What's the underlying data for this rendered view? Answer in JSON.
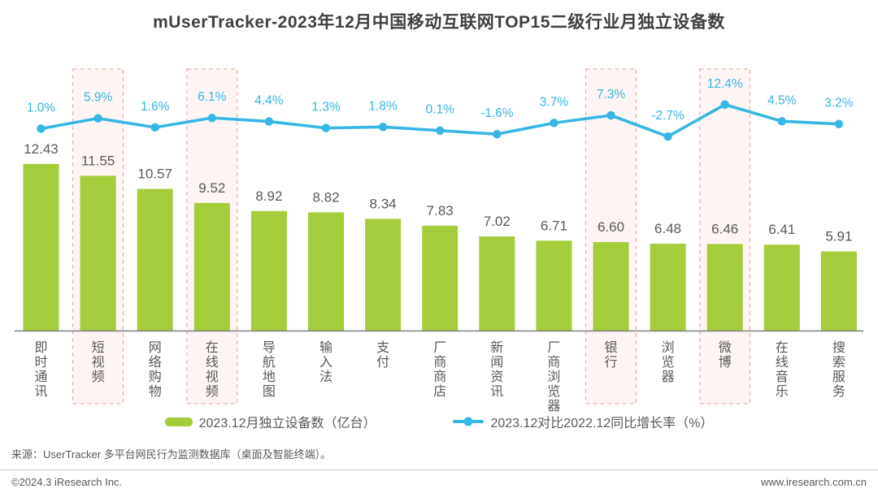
{
  "title": "mUserTracker-2023年12月中国移动互联网TOP15二级行业月独立设备数",
  "colors": {
    "bar_green": "#a5cc3a",
    "line_blue": "#36b6e3",
    "highlight_fill": "#fdf5f4",
    "highlight_border": "#e0a49f",
    "value_label": "#595959",
    "category_label": "#595959",
    "axis": "#7f7f7f",
    "title_text": "#404040",
    "footer_text": "#595959"
  },
  "chart_data": {
    "type": "bar",
    "categories": [
      "即时通讯",
      "短视频",
      "网络购物",
      "在线视频",
      "导航地图",
      "输入法",
      "支付",
      "厂商商店",
      "新闻资讯",
      "厂商浏览器",
      "银行",
      "浏览器",
      "微博",
      "在线音乐",
      "搜索服务"
    ],
    "series": [
      {
        "name": "2023.12月独立设备数（亿台）",
        "type": "bar",
        "values": [
          12.43,
          11.55,
          10.57,
          9.52,
          8.92,
          8.82,
          8.34,
          7.83,
          7.02,
          6.71,
          6.6,
          6.48,
          6.46,
          6.41,
          5.91
        ],
        "labels": [
          "12.43",
          "11.55",
          "10.57",
          "9.52",
          "8.92",
          "8.82",
          "8.34",
          "7.83",
          "7.02",
          "6.71",
          "6.60",
          "6.48",
          "6.46",
          "6.41",
          "5.91"
        ]
      },
      {
        "name": "2023.12对比2022.12同比增长率（%）",
        "type": "line",
        "values": [
          1.0,
          5.9,
          1.6,
          6.1,
          4.4,
          1.3,
          1.8,
          0.1,
          -1.6,
          3.7,
          7.3,
          -2.7,
          12.4,
          4.5,
          3.2
        ],
        "labels": [
          "1.0%",
          "5.9%",
          "1.6%",
          "6.1%",
          "4.4%",
          "1.3%",
          "1.8%",
          "0.1%",
          "-1.6%",
          "3.7%",
          "7.3%",
          "-2.7%",
          "12.4%",
          "4.5%",
          "3.2%"
        ]
      }
    ],
    "highlighted_categories": [
      "短视频",
      "在线视频",
      "银行",
      "微博"
    ],
    "ylim_bar": [
      0,
      14
    ],
    "grid": false,
    "legend_position": "bottom"
  },
  "legend": {
    "bar_label": "2023.12月独立设备数（亿台）",
    "line_label": "2023.12对比2022.12同比增长率（%）"
  },
  "footer": {
    "source": "来源：UserTracker 多平台网民行为监测数据库（桌面及智能终端）。",
    "copyright": "©2024.3 iResearch Inc.",
    "website": "www.iresearch.com.cn"
  }
}
